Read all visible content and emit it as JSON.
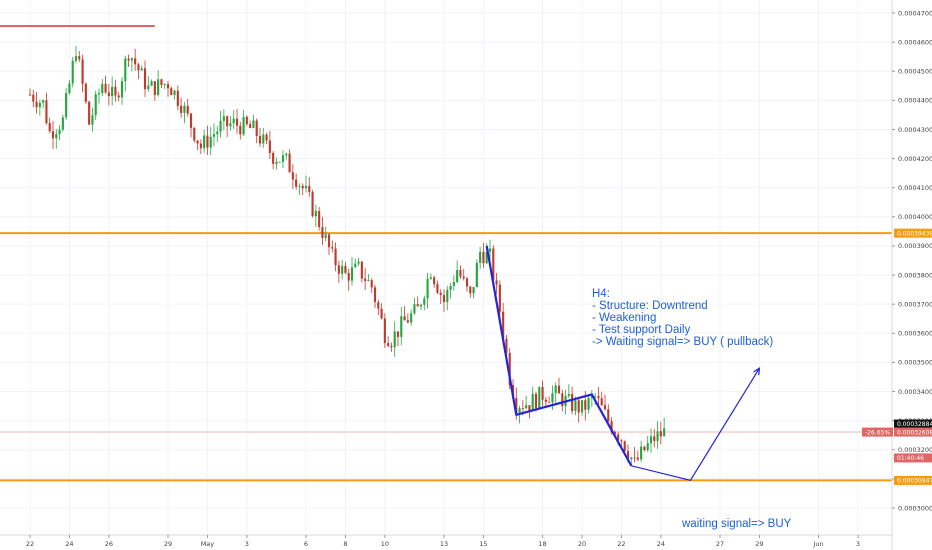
{
  "chart_data": {
    "type": "candlestick",
    "timeframe_label": "H4:",
    "y_axis": {
      "range": [
        0.000293,
        0.000472
      ],
      "ticks": [
        "0.00047000",
        "0.00046000",
        "0.00045000",
        "0.00044000",
        "0.00043000",
        "0.00042000",
        "0.00041000",
        "0.00040000",
        "0.00039000",
        "0.00038000",
        "0.00037000",
        "0.00036000",
        "0.00035000",
        "0.00034000",
        "0.00033000",
        "0.00032000",
        "0.00031000",
        "0.00030000"
      ],
      "tick_values": [
        0.00047,
        0.00046,
        0.00045,
        0.00044,
        0.00043,
        0.00042,
        0.00041,
        0.0004,
        0.00039,
        0.00038,
        0.00037,
        0.00036,
        0.00035,
        0.00034,
        0.00033,
        0.00032,
        0.00031,
        0.0003
      ]
    },
    "x_axis": {
      "ticks": [
        "22",
        "24",
        "26",
        "29",
        "May",
        "3",
        "6",
        "8",
        "10",
        "13",
        "15",
        "18",
        "20",
        "22",
        "24",
        "27",
        "29",
        "Jun",
        "3"
      ],
      "tick_index": [
        0,
        12,
        24,
        42,
        54,
        66,
        84,
        96,
        108,
        126,
        138,
        156,
        168,
        180,
        192,
        210,
        222,
        240,
        252
      ],
      "total_index": 258
    },
    "price_tags": [
      {
        "text": "0.00039439",
        "value": 0.00039439,
        "color": "#f39c12"
      },
      {
        "text": "0.00032884",
        "value": 0.00032884,
        "color": "#111111"
      },
      {
        "text": "0.00032608",
        "value": 0.00032608,
        "color": "#e06666",
        "prefix": "-26.65%"
      },
      {
        "text": "01:40:46",
        "value": 0.0003172,
        "color": "#e06666"
      },
      {
        "text": "0.00030947",
        "value": 0.00030947,
        "color": "#f39c12"
      }
    ],
    "horizontal_lines": [
      {
        "value": 0.00039439,
        "color": "#f39c12",
        "from_index": 0
      },
      {
        "value": 0.00030947,
        "color": "#f39c12",
        "from_index": 0
      },
      {
        "value": 0.00046552,
        "color": "#e06666",
        "from_index": 0,
        "to_index": 38
      },
      {
        "value": 0.00032608,
        "color": "#f4b6b6",
        "from_index": 0,
        "thin": true
      }
    ],
    "pattern_lines": [
      {
        "color": "#2323d8",
        "points": [
          [
            139,
            0.00039
          ],
          [
            148,
            0.000332
          ],
          [
            171,
            0.000339
          ],
          [
            183,
            0.0003145
          ]
        ]
      }
    ],
    "projection_arrow": {
      "color": "#2323d8",
      "points": [
        [
          201,
          0.0003095
        ],
        [
          222,
          0.000348
        ]
      ]
    },
    "annotations": [
      "H4:",
      "- Structure: Downtrend",
      "- Weakening",
      "- Test support Daily",
      "-> Waiting signal=> BUY ( pullback)"
    ],
    "support_label": "waiting signal=> BUY",
    "candle_path": [
      [
        0,
        0.000442
      ],
      [
        4,
        0.000439
      ],
      [
        6,
        0.000429
      ],
      [
        10,
        0.000433
      ],
      [
        14,
        0.000458
      ],
      [
        18,
        0.000432
      ],
      [
        22,
        0.000446
      ],
      [
        26,
        0.00044
      ],
      [
        30,
        0.000457
      ],
      [
        36,
        0.000444
      ],
      [
        42,
        0.000446
      ],
      [
        46,
        0.000439
      ],
      [
        52,
        0.000424
      ],
      [
        58,
        0.000431
      ],
      [
        62,
        0.000432
      ],
      [
        68,
        0.00043
      ],
      [
        74,
        0.000421
      ],
      [
        78,
        0.000419
      ],
      [
        84,
        0.000408
      ],
      [
        88,
        0.000398
      ],
      [
        92,
        0.000386
      ],
      [
        96,
        0.00038
      ],
      [
        100,
        0.000382
      ],
      [
        104,
        0.000376
      ],
      [
        108,
        0.00036
      ],
      [
        110,
        0.000358
      ],
      [
        114,
        0.000364
      ],
      [
        118,
        0.000368
      ],
      [
        122,
        0.000382
      ],
      [
        126,
        0.000371
      ],
      [
        130,
        0.000382
      ],
      [
        134,
        0.000372
      ],
      [
        137,
        0.000388
      ],
      [
        140,
        0.000386
      ],
      [
        143,
        0.000368
      ],
      [
        146,
        0.000345
      ],
      [
        148,
        0.000336
      ],
      [
        152,
        0.000336
      ],
      [
        156,
        0.000339
      ],
      [
        160,
        0.000339
      ],
      [
        164,
        0.000336
      ],
      [
        168,
        0.000334
      ],
      [
        172,
        0.000338
      ],
      [
        176,
        0.00033
      ],
      [
        180,
        0.000324
      ],
      [
        184,
        0.000315
      ],
      [
        187,
        0.00032
      ],
      [
        190,
        0.000324
      ],
      [
        193,
        0.000326
      ]
    ],
    "volatility": 4.2e-06,
    "seed": 7
  }
}
